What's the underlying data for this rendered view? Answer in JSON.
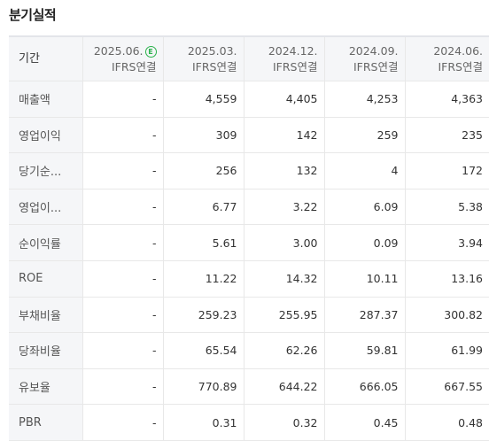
{
  "title": "분기실적",
  "header_label": "기간",
  "columns": [
    {
      "date": "2025.06.",
      "estimate_badge": "E",
      "basis": "IFRS연결"
    },
    {
      "date": "2025.03.",
      "basis": "IFRS연결"
    },
    {
      "date": "2024.12.",
      "basis": "IFRS연결"
    },
    {
      "date": "2024.09.",
      "basis": "IFRS연결"
    },
    {
      "date": "2024.06.",
      "basis": "IFRS연결"
    }
  ],
  "rows": [
    {
      "label": "매출액",
      "values": [
        "-",
        "4,559",
        "4,405",
        "4,253",
        "4,363"
      ]
    },
    {
      "label": "영업이익",
      "values": [
        "-",
        "309",
        "142",
        "259",
        "235"
      ]
    },
    {
      "label": "당기순...",
      "values": [
        "-",
        "256",
        "132",
        "4",
        "172"
      ]
    },
    {
      "label": "영업이...",
      "values": [
        "-",
        "6.77",
        "3.22",
        "6.09",
        "5.38"
      ]
    },
    {
      "label": "순이익률",
      "values": [
        "-",
        "5.61",
        "3.00",
        "0.09",
        "3.94"
      ]
    },
    {
      "label": "ROE",
      "values": [
        "-",
        "11.22",
        "14.32",
        "10.11",
        "13.16"
      ]
    },
    {
      "label": "부채비율",
      "values": [
        "-",
        "259.23",
        "255.95",
        "287.37",
        "300.82"
      ]
    },
    {
      "label": "당좌비율",
      "values": [
        "-",
        "65.54",
        "62.26",
        "59.81",
        "61.99"
      ]
    },
    {
      "label": "유보율",
      "values": [
        "-",
        "770.89",
        "644.22",
        "666.05",
        "667.55"
      ]
    },
    {
      "label": "PBR",
      "values": [
        "-",
        "0.31",
        "0.32",
        "0.45",
        "0.48"
      ]
    }
  ],
  "colors": {
    "estimate_badge": "#2bb24c",
    "header_bg": "#f5f6f8"
  }
}
